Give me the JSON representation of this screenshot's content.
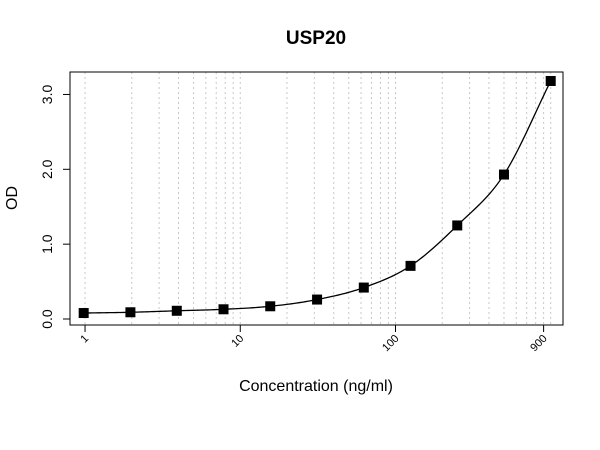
{
  "chart_data": {
    "type": "scatter",
    "title": "USP20",
    "xlabel": "Concentration (ng/ml)",
    "ylabel": "OD",
    "x_scale": "log",
    "xlim": [
      0.8,
      1200
    ],
    "ylim": [
      -0.08,
      3.3
    ],
    "x_tick_labels": [
      {
        "value": 1,
        "label": "1"
      },
      {
        "value": 10,
        "label": "10"
      },
      {
        "value": 100,
        "label": "100"
      },
      {
        "value": 900,
        "label": "900"
      }
    ],
    "y_tick_labels": [
      {
        "value": 0,
        "label": "0.0"
      },
      {
        "value": 1,
        "label": "1.0"
      },
      {
        "value": 2,
        "label": "2.0"
      },
      {
        "value": 3,
        "label": "3.0"
      }
    ],
    "grid": "vertical, dotted, log minor lines",
    "fit_curve": true,
    "marker": "square",
    "color": "#000000",
    "x": [
      0.98,
      1.96,
      3.9,
      7.8,
      15.6,
      31.25,
      62.5,
      125,
      250,
      500,
      1000
    ],
    "y": [
      0.08,
      0.09,
      0.11,
      0.13,
      0.17,
      0.26,
      0.42,
      0.71,
      1.25,
      1.93,
      3.18
    ]
  }
}
